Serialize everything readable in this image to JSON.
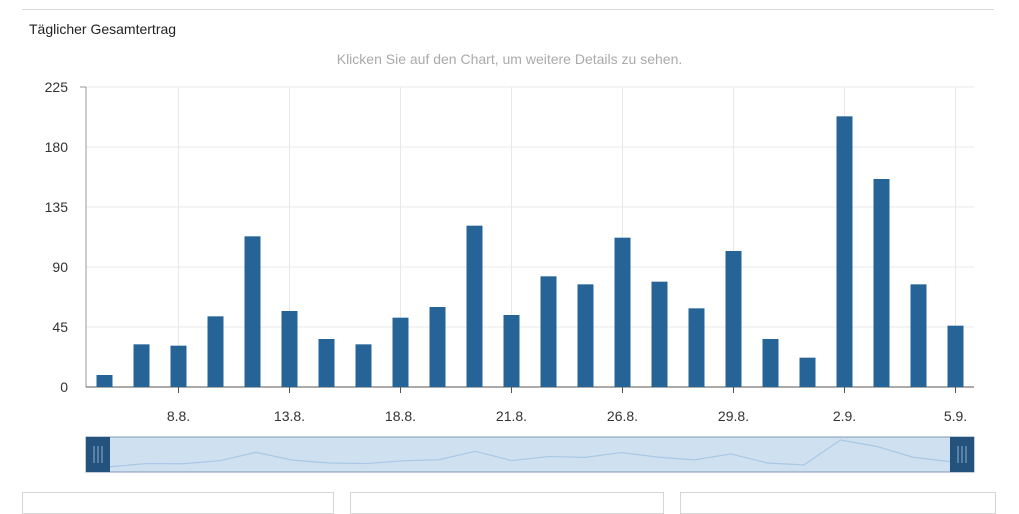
{
  "header": {
    "title": "Täglicher Gesamtertrag",
    "hint": "Klicken Sie auf den Chart, um weitere Details zu sehen."
  },
  "colors": {
    "bar": "#266396",
    "navigator_fill": "#cfe0f0",
    "navigator_handle": "#23527c",
    "navigator_line": "#a9c8e6",
    "grid": "#e8e8e8"
  },
  "chart_data": {
    "type": "bar",
    "title": "Täglicher Gesamtertrag",
    "values": [
      9,
      32,
      31,
      53,
      113,
      57,
      36,
      32,
      52,
      60,
      121,
      54,
      83,
      77,
      112,
      79,
      59,
      102,
      36,
      22,
      203,
      156,
      77,
      46
    ],
    "x_tick_labels": [
      "8.8.",
      "13.8.",
      "18.8.",
      "21.8.",
      "26.8.",
      "29.8.",
      "2.9.",
      "5.9."
    ],
    "x_tick_bar_indices": [
      2,
      5,
      8,
      11,
      14,
      17,
      20,
      23
    ],
    "y_ticks": [
      0,
      45,
      90,
      135,
      180,
      225
    ],
    "ylim": [
      0,
      225
    ],
    "grid": true,
    "legend": "none"
  }
}
